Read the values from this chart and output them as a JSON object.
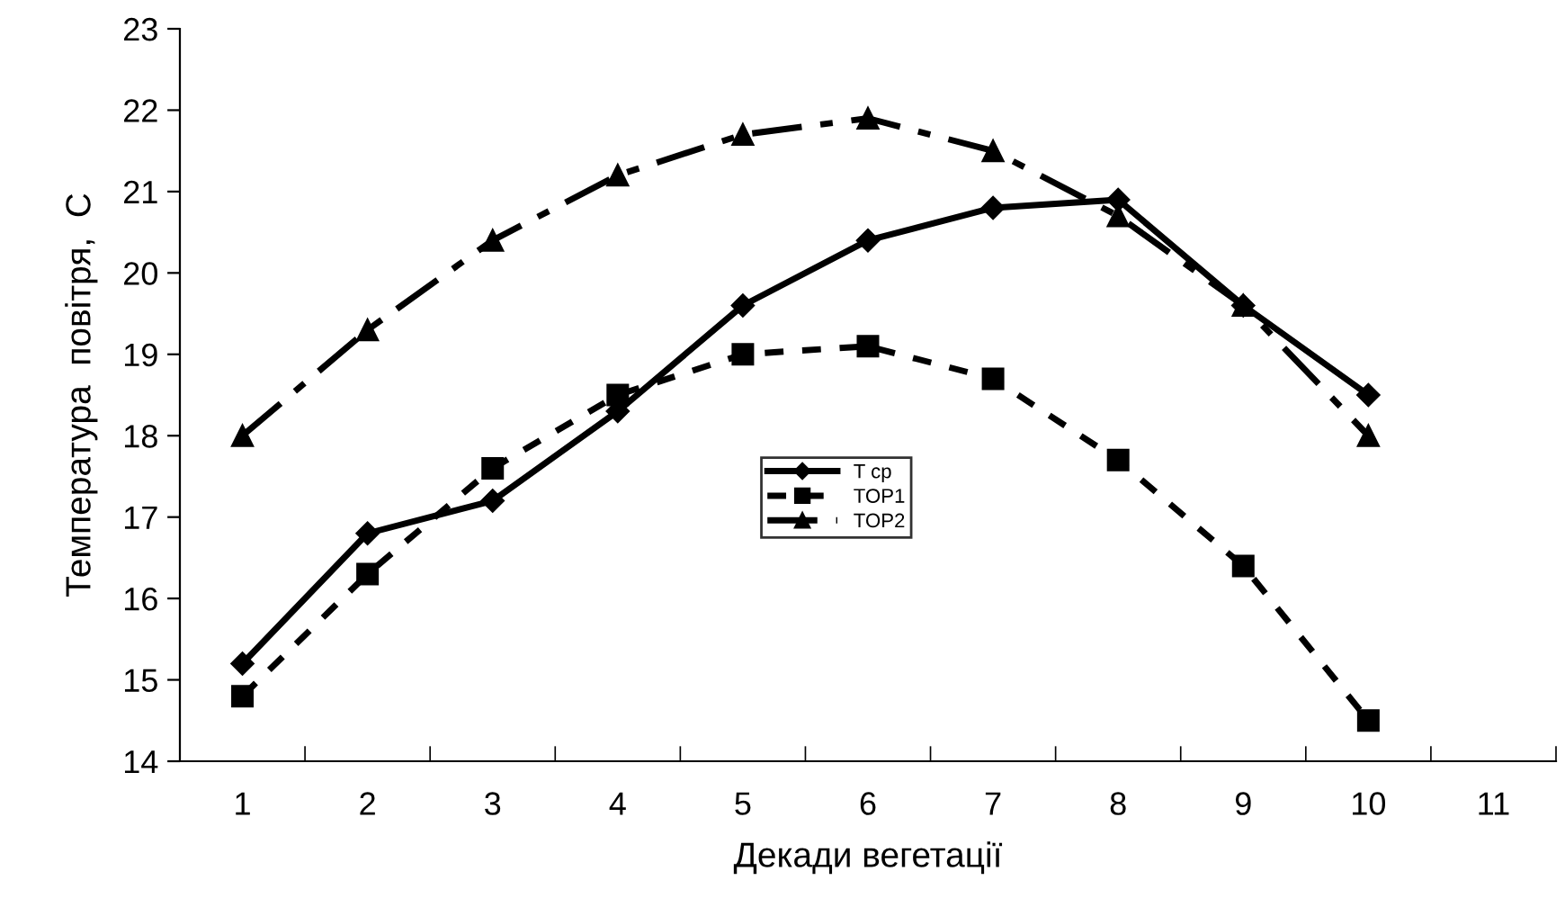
{
  "chart_data": {
    "type": "line",
    "xlabel": "Декади вегетації",
    "ylabel": "Температура  повітря,  С",
    "categories": [
      "1",
      "2",
      "3",
      "4",
      "5",
      "6",
      "7",
      "8",
      "9",
      "10",
      "11"
    ],
    "series": [
      {
        "name": "T cp",
        "color": "#000000",
        "marker": "diamond",
        "line_style": "solid",
        "values": [
          15.2,
          16.8,
          17.2,
          18.3,
          19.6,
          20.4,
          20.8,
          20.9,
          19.6,
          18.5,
          null
        ]
      },
      {
        "name": "TOP1",
        "color": "#000000",
        "marker": "square",
        "line_style": "dotted",
        "values": [
          14.8,
          16.3,
          17.6,
          18.5,
          19.0,
          19.1,
          18.7,
          17.7,
          16.4,
          14.5,
          null
        ]
      },
      {
        "name": "TOP2",
        "color": "#000000",
        "marker": "triangle",
        "line_style": "dashed",
        "values": [
          18.0,
          19.3,
          20.4,
          21.2,
          21.7,
          21.9,
          21.5,
          20.7,
          19.6,
          18.0,
          null
        ]
      }
    ],
    "ylim": [
      14,
      23
    ],
    "yticks": [
      14,
      15,
      16,
      17,
      18,
      19,
      20,
      21,
      22,
      23
    ],
    "grid": false,
    "legend": "center"
  }
}
